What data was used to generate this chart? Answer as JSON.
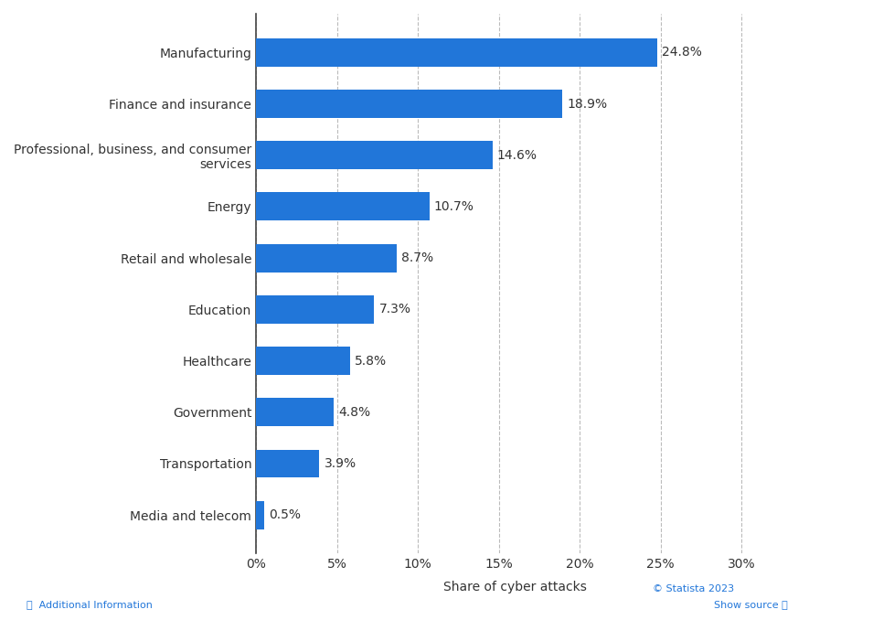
{
  "categories": [
    "Media and telecom",
    "Transportation",
    "Government",
    "Healthcare",
    "Education",
    "Retail and wholesale",
    "Energy",
    "Professional, business, and consumer\nservices",
    "Finance and insurance",
    "Manufacturing"
  ],
  "values": [
    0.5,
    3.9,
    4.8,
    5.8,
    7.3,
    8.7,
    10.7,
    14.6,
    18.9,
    24.8
  ],
  "bar_color": "#2176d9",
  "xlabel": "Share of cyber attacks",
  "xlim": [
    0,
    32
  ],
  "xticks": [
    0,
    5,
    10,
    15,
    20,
    25,
    30
  ],
  "xtick_labels": [
    "0%",
    "5%",
    "10%",
    "15%",
    "20%",
    "25%",
    "30%"
  ],
  "background_color": "#f0f0f0",
  "plot_bg_color": "#ffffff",
  "bar_height": 0.55,
  "label_fontsize": 10,
  "tick_fontsize": 10,
  "xlabel_fontsize": 10
}
